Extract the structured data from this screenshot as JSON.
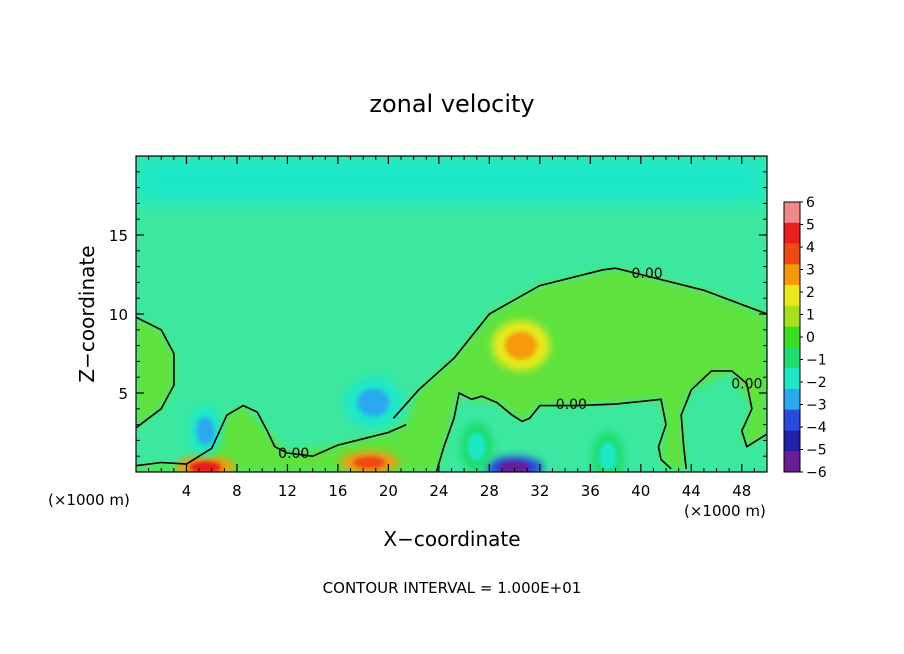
{
  "chart_data": {
    "type": "heatmap",
    "title": "zonal velocity",
    "xlabel": "X−coordinate",
    "ylabel": "Z−coordinate",
    "x_unit_left": "(×1000 m)",
    "x_unit_right": "(×1000 m)",
    "footer": "CONTOUR INTERVAL = 1.000E+01",
    "xlim": [
      0,
      50
    ],
    "ylim": [
      0,
      20
    ],
    "x_ticks": [
      4,
      8,
      12,
      16,
      20,
      24,
      28,
      32,
      36,
      40,
      44,
      48
    ],
    "x_tick_labels": [
      "4",
      "8",
      "12",
      "16",
      "20",
      "24",
      "28",
      "32",
      "36",
      "40",
      "44",
      "48"
    ],
    "y_ticks": [
      5,
      10,
      15
    ],
    "y_tick_labels": [
      "5",
      "10",
      "15"
    ],
    "colorbar": {
      "min": -6,
      "max": 6,
      "tick_labels": [
        "6",
        "5",
        "4",
        "3",
        "2",
        "1",
        "0",
        "−1",
        "−2",
        "−3",
        "−4",
        "−5",
        "−6"
      ],
      "colors": [
        "#f08a8a",
        "#e81e1e",
        "#f04a14",
        "#f59a0a",
        "#e8e81e",
        "#a8e020",
        "#3cdc1e",
        "#1edc6e",
        "#1ee8c8",
        "#2aa8f0",
        "#2a4ae0",
        "#2222a8",
        "#6a1e96"
      ]
    },
    "contours": [
      {
        "level": 0,
        "label": "0.00",
        "points": [
          [
            0,
            9.8
          ],
          [
            2,
            9
          ],
          [
            3,
            7.5
          ],
          [
            3,
            5.5
          ],
          [
            2,
            4
          ],
          [
            0,
            2.8
          ]
        ]
      },
      {
        "level": 0,
        "label": "0.00",
        "points": [
          [
            20.4,
            3.4
          ],
          [
            22.4,
            5.2
          ],
          [
            25.2,
            7.2
          ],
          [
            28,
            10
          ],
          [
            32,
            11.8
          ],
          [
            37,
            12.8
          ],
          [
            38,
            12.9
          ],
          [
            45,
            11.5
          ],
          [
            50,
            10
          ]
        ]
      },
      {
        "level": 0,
        "label": "0.00",
        "points": [
          [
            0,
            0.4
          ],
          [
            2,
            0.6
          ],
          [
            4,
            0.5
          ],
          [
            6,
            1.5
          ],
          [
            7.2,
            3.6
          ],
          [
            8.5,
            4.2
          ],
          [
            9.6,
            3.8
          ],
          [
            10.4,
            2.6
          ],
          [
            11,
            1.6
          ],
          [
            12,
            1.2
          ],
          [
            14,
            1
          ],
          [
            16,
            1.7
          ],
          [
            18,
            2.1
          ],
          [
            20,
            2.5
          ],
          [
            21.4,
            3
          ]
        ]
      },
      {
        "level": 0,
        "label": "0.00",
        "points": [
          [
            23.8,
            0
          ],
          [
            24.4,
            1.6
          ],
          [
            25.2,
            3.4
          ],
          [
            25.6,
            5.0
          ],
          [
            26.6,
            4.6
          ],
          [
            27.4,
            4.8
          ],
          [
            28.6,
            4.4
          ],
          [
            29.8,
            3.6
          ],
          [
            30.6,
            3.2
          ],
          [
            31.2,
            3.4
          ],
          [
            32,
            4.2
          ],
          [
            35,
            4.2
          ],
          [
            38,
            4.3
          ],
          [
            41.6,
            4.6
          ],
          [
            42,
            3.0
          ],
          [
            41.4,
            1.6
          ],
          [
            41.6,
            0.8
          ],
          [
            42.4,
            0.2
          ]
        ]
      },
      {
        "level": 0,
        "label": "0.00",
        "points": [
          [
            43.6,
            0.2
          ],
          [
            43.4,
            1.6
          ],
          [
            43.2,
            3.6
          ],
          [
            44,
            5.2
          ],
          [
            45.6,
            6.4
          ],
          [
            47.2,
            6.4
          ],
          [
            48.4,
            5.6
          ],
          [
            48.8,
            4.0
          ],
          [
            48,
            2.6
          ],
          [
            48.4,
            1.6
          ],
          [
            50,
            2.4
          ]
        ]
      }
    ],
    "features": [
      {
        "type": "max",
        "x": 30.5,
        "y": 8.0,
        "value": 3.2
      },
      {
        "type": "min",
        "x": 18.8,
        "y": 4.4,
        "value": -3.0
      },
      {
        "type": "max",
        "x": 18.5,
        "y": 0.6,
        "value": 4.5
      },
      {
        "type": "max",
        "x": 5.5,
        "y": 0.3,
        "value": 5.0
      },
      {
        "type": "min",
        "x": 30.0,
        "y": 0.3,
        "value": -6.0
      },
      {
        "type": "min",
        "x": 5.5,
        "y": 2.6,
        "value": -2.5
      },
      {
        "type": "min",
        "x": 27.0,
        "y": 1.6,
        "value": -2.0
      },
      {
        "type": "min",
        "x": 37.4,
        "y": 1.0,
        "value": -2.0
      }
    ]
  }
}
